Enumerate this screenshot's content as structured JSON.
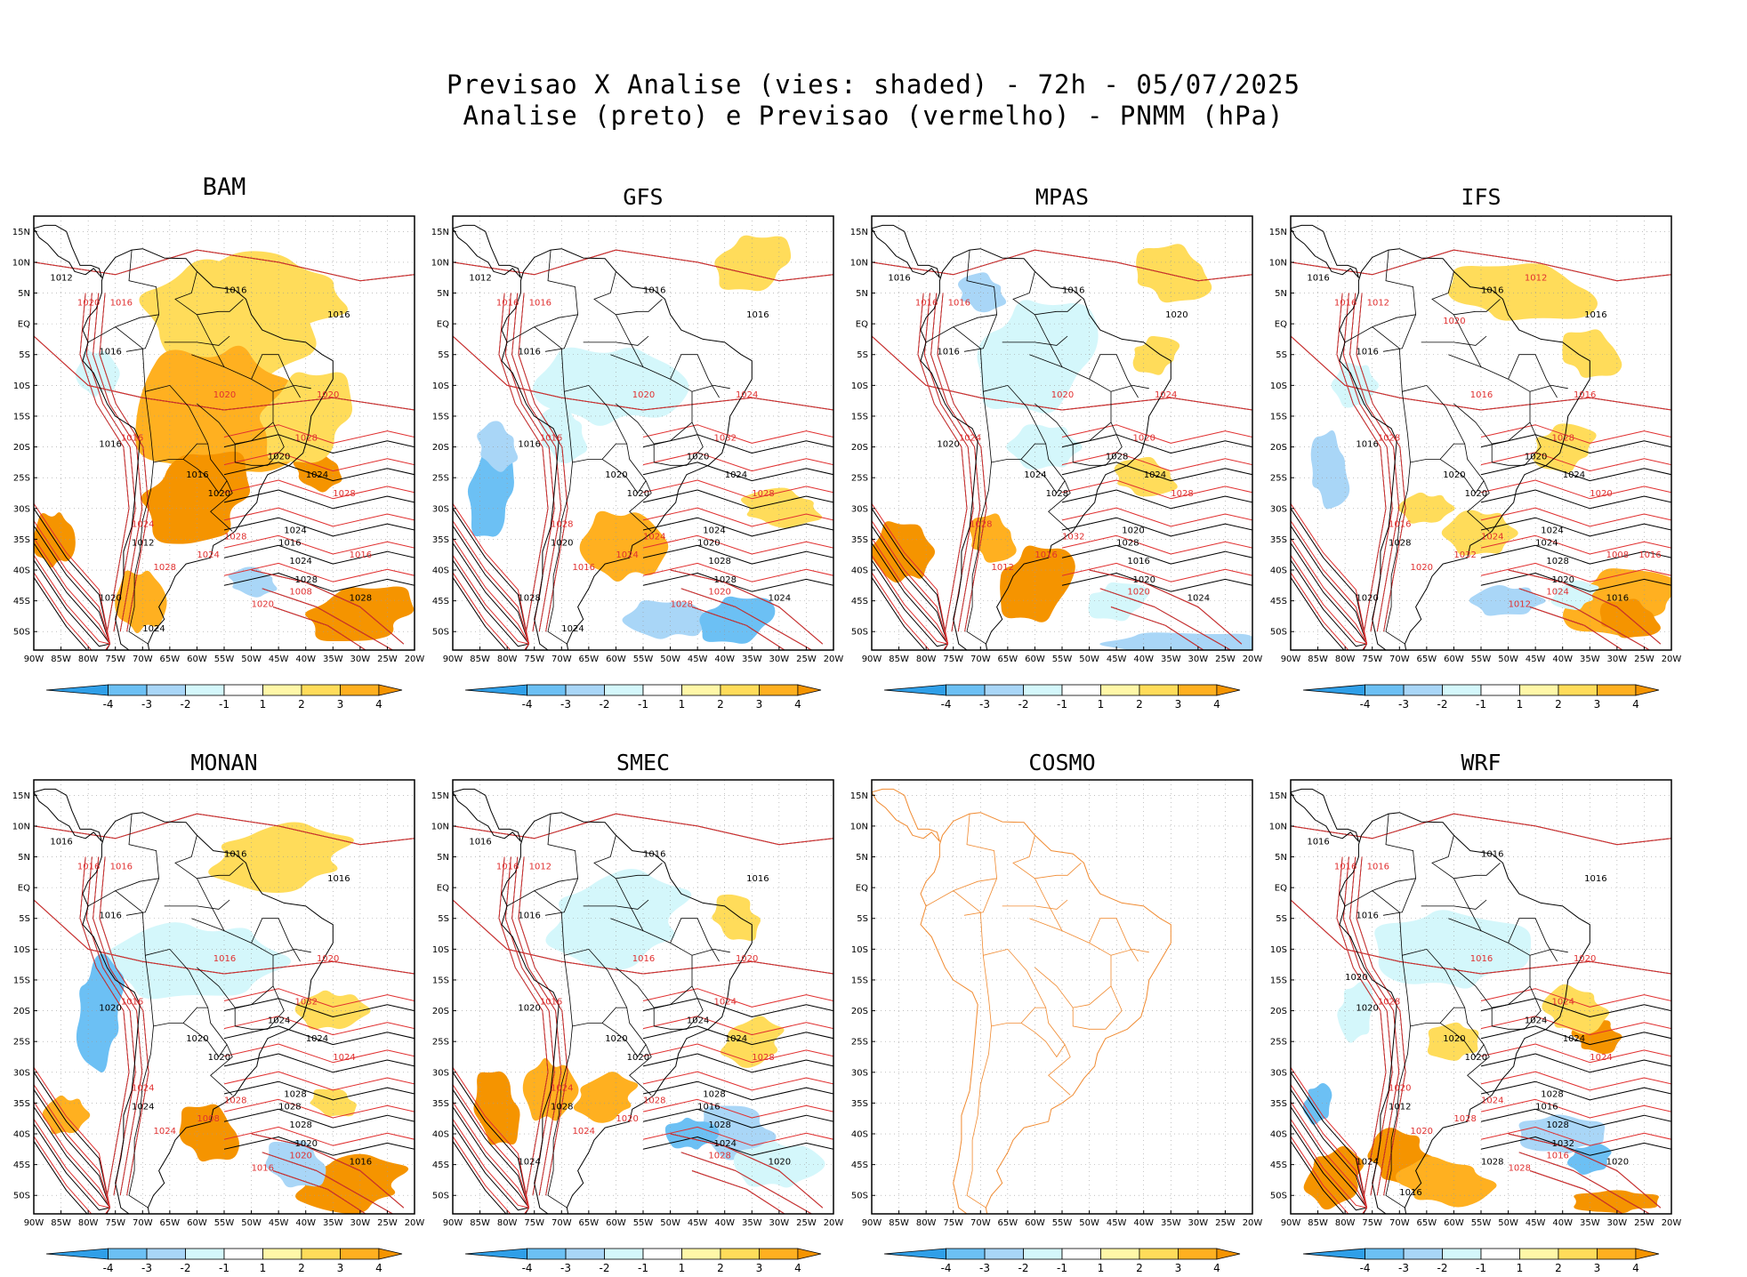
{
  "title_line1": "Previsao X Analise (vies: shaded) - 72h - 05/07/2025",
  "title_line2": "Analise (preto) e Previsao (vermelho) - PNMM (hPa)",
  "colorbar": {
    "labels": [
      "-4",
      "-3",
      "-2",
      "-1",
      "1",
      "2",
      "3",
      "4"
    ],
    "colors": [
      "#2f9fe8",
      "#6cc0f4",
      "#a9d6f7",
      "#d4f7fb",
      "#ffffff",
      "#fff7a8",
      "#ffdc5a",
      "#ffb020",
      "#f59400"
    ]
  },
  "lat_labels": [
    "15N",
    "10N",
    "5N",
    "EQ",
    "5S",
    "10S",
    "15S",
    "20S",
    "25S",
    "30S",
    "35S",
    "40S",
    "45S",
    "50S"
  ],
  "lon_labels": [
    "90W",
    "85W",
    "80W",
    "75W",
    "70W",
    "65W",
    "60W",
    "55W",
    "50W",
    "45W",
    "40W",
    "35W",
    "30W",
    "25W",
    "20W"
  ],
  "colors": {
    "analysis": "#000000",
    "forecast": "#e03030",
    "empty_map": "#f08a30"
  },
  "panels": [
    {
      "name": "BAM",
      "has_data": true,
      "black_labels": [
        "1012",
        "1016",
        "1016",
        "1016",
        "1016",
        "1016",
        "1020",
        "1020",
        "1024",
        "1024",
        "1024",
        "1028",
        "1028",
        "1016",
        "1012",
        "1020",
        "1024"
      ],
      "red_labels": [
        "1016",
        "1020",
        "1020",
        "1020",
        "1024",
        "1028",
        "1028",
        "1028",
        "1016",
        "1024",
        "1028",
        "1008",
        "1020",
        "1016"
      ]
    },
    {
      "name": "GFS",
      "has_data": true,
      "black_labels": [
        "1012",
        "1016",
        "1016",
        "1016",
        "1016",
        "1020",
        "1020",
        "1020",
        "1024",
        "1024",
        "1028",
        "1028",
        "1024",
        "1020",
        "1020",
        "1028",
        "1024"
      ],
      "red_labels": [
        "1016",
        "1016",
        "1020",
        "1024",
        "1028",
        "1028",
        "1024",
        "1032",
        "1016",
        "1024",
        "1016",
        "1020",
        "1028"
      ]
    },
    {
      "name": "MPAS",
      "has_data": true,
      "black_labels": [
        "1016",
        "1016",
        "1016",
        "1020",
        "1020",
        "1024",
        "1028",
        "1028",
        "1024",
        "1020",
        "1016",
        "1020",
        "1024",
        "1028"
      ],
      "red_labels": [
        "1016",
        "1016",
        "1020",
        "1024",
        "1028",
        "1028",
        "1032",
        "1020",
        "1024",
        "1016",
        "1012",
        "1020"
      ]
    },
    {
      "name": "IFS",
      "has_data": true,
      "black_labels": [
        "1016",
        "1016",
        "1016",
        "1016",
        "1016",
        "1020",
        "1020",
        "1020",
        "1024",
        "1024",
        "1028",
        "1020",
        "1016",
        "1024",
        "1028",
        "1020"
      ],
      "red_labels": [
        "1012",
        "1016",
        "1016",
        "1016",
        "1016",
        "1020",
        "1024",
        "1028",
        "1028",
        "1032",
        "1020",
        "1024",
        "1012",
        "1008",
        "1016",
        "1020",
        "1012"
      ]
    },
    {
      "name": "MONAN",
      "has_data": true,
      "black_labels": [
        "1016",
        "1016",
        "1016",
        "1016",
        "1020",
        "1020",
        "1020",
        "1024",
        "1024",
        "1028",
        "1028",
        "1020",
        "1016",
        "1028",
        "1024"
      ],
      "red_labels": [
        "1016",
        "1016",
        "1016",
        "1020",
        "1024",
        "1024",
        "1028",
        "1032",
        "1016",
        "1008",
        "1024",
        "1020",
        "1016"
      ]
    },
    {
      "name": "SMEC",
      "has_data": true,
      "black_labels": [
        "1016",
        "1016",
        "1016",
        "1016",
        "1020",
        "1020",
        "1020",
        "1024",
        "1024",
        "1028",
        "1028",
        "1024",
        "1020",
        "1016",
        "1028",
        "1024"
      ],
      "red_labels": [
        "1012",
        "1016",
        "1016",
        "1020",
        "1024",
        "1028",
        "1028",
        "1024",
        "1016",
        "1020",
        "1024",
        "1028"
      ]
    },
    {
      "name": "COSMO",
      "has_data": false,
      "black_labels": [],
      "red_labels": []
    },
    {
      "name": "WRF",
      "has_data": true,
      "black_labels": [
        "1016",
        "1016",
        "1016",
        "1016",
        "1020",
        "1020",
        "1020",
        "1024",
        "1024",
        "1028",
        "1028",
        "1032",
        "1020",
        "1016",
        "1012",
        "1024",
        "1016",
        "1028",
        "1020"
      ],
      "red_labels": [
        "1016",
        "1016",
        "1016",
        "1020",
        "1020",
        "1024",
        "1024",
        "1024",
        "1028",
        "1028",
        "1020",
        "1016",
        "1028"
      ]
    }
  ]
}
